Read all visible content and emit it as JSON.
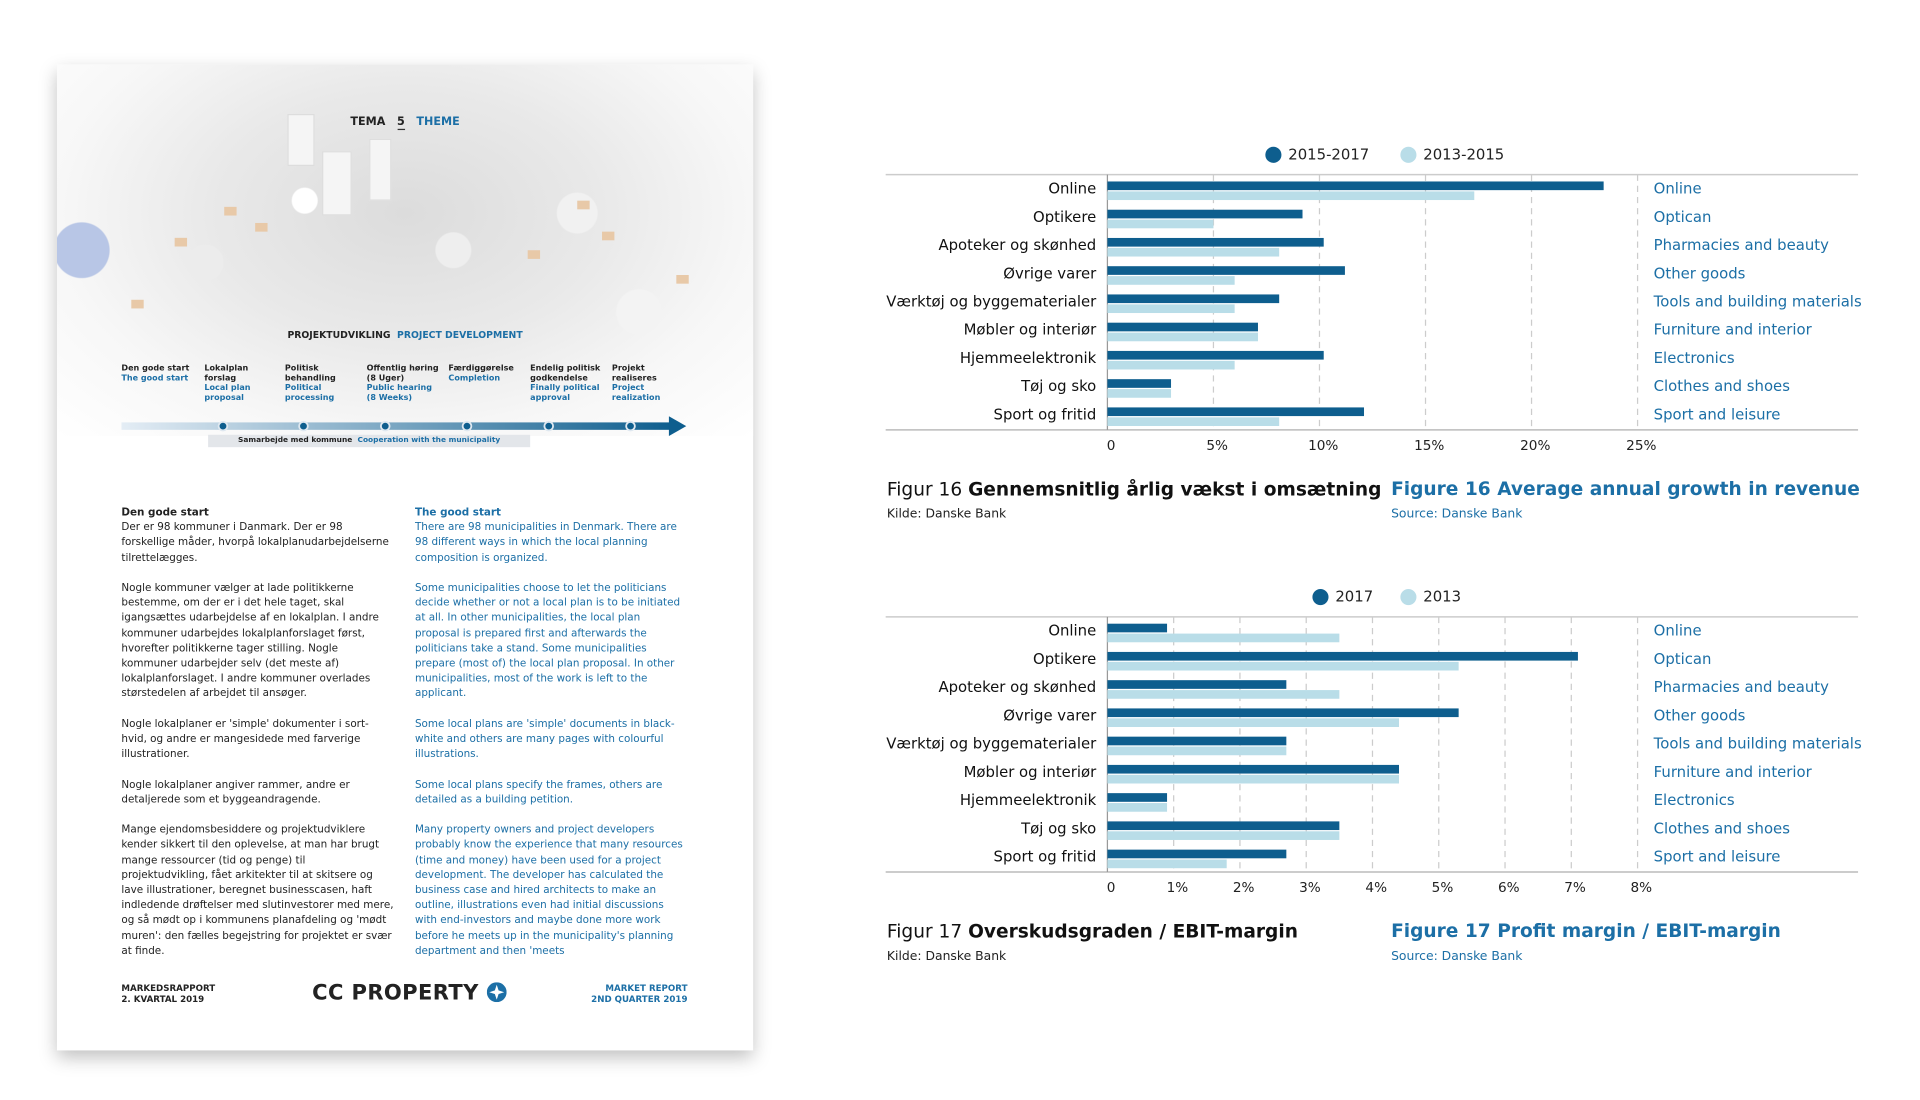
{
  "document": {
    "theme": {
      "label_da": "TEMA",
      "number": "5",
      "label_en": "THEME"
    },
    "process": {
      "title_da": "PROJEKTUDVIKLING",
      "title_en": "PROJECT DEVELOPMENT",
      "steps": [
        {
          "da": "Den gode start",
          "en": "The good start"
        },
        {
          "da": "Lokalplan forslag",
          "en": "Local plan proposal"
        },
        {
          "da": "Politisk behandling",
          "en": "Political processing"
        },
        {
          "da": "Offentlig høring (8 Uger)",
          "en": "Public hearing (8 Weeks)"
        },
        {
          "da": "Færdiggørelse",
          "en": "Completion"
        },
        {
          "da": "Endelig politisk godkendelse",
          "en": "Finally political approval"
        },
        {
          "da": "Projekt realiseres",
          "en": "Project realization"
        }
      ],
      "cooperation_da": "Samarbejde med kommune",
      "cooperation_en": "Cooperation with the municipality"
    },
    "text_da": {
      "heading": "Den gode start",
      "paragraphs": [
        "Der er 98 kommuner i Danmark. Der er 98 forskellige måder, hvorpå lokalplanudarbejdelserne tilrettelægges.",
        "Nogle kommuner vælger at lade politikkerne bestemme, om der er i det hele taget, skal igangsættes udarbejdelse af en lokalplan. I andre kommuner udarbejdes lokalplanforslaget først, hvorefter politikkerne tager stilling. Nogle kommuner udarbejder selv (det meste af) lokalplanforslaget. I andre kommuner overlades størstedelen af arbejdet til ansøger.",
        "Nogle lokalplaner er 'simple' dokumenter i sort-hvid, og andre er mangesidede med farverige illustrationer.",
        "Nogle lokalplaner angiver rammer, andre er detaljerede som et byggeandragende.",
        "Mange ejendomsbesiddere og projektudviklere kender sikkert til den oplevelse, at man har brugt mange ressourcer (tid og penge) til projektudvikling, fået arkitekter til at skitsere og lave illustrationer, beregnet businesscasen, haft indledende drøftelser med slutinvestorer med mere, og så mødt op i kommunens planafdeling og 'mødt muren': den fælles begejstring for projektet er svær at finde."
      ]
    },
    "text_en": {
      "heading": "The good start",
      "paragraphs": [
        "There are 98 municipalities in Denmark. There are 98 different ways in which the local planning composition is organized.",
        "Some municipalities choose to let the politicians decide whether or not a local plan is to be initiated at all. In other municipalities, the local plan proposal is prepared first and afterwards the politicians take a stand. Some municipalities prepare (most of) the local plan proposal. In other municipalities, most of the work is left to the applicant.",
        "Some local plans are 'simple' documents in black-white and others are many pages with colourful illustrations.",
        "Some local plans specify the frames, others are detailed as a building petition.",
        "Many property owners and project developers probably know the experience that many resources (time and money) have been used for a project development. The developer has calculated the business case and hired architects to make an outline, illustrations even had initial discussions with end-investors and maybe done more work before he meets up in the municipality's planning department and then 'meets"
      ]
    },
    "footer": {
      "left_1": "MARKEDSRAPPORT",
      "left_2": "2. KVARTAL 2019",
      "logo": "CC PROPERTY",
      "right_1": "MARKET REPORT",
      "right_2": "2ND QUARTER 2019"
    }
  },
  "chart_data": [
    {
      "type": "bar",
      "orientation": "horizontal",
      "legend": "top",
      "grid": true,
      "caption_label": "Figur 16",
      "caption_title": "Gennemsnitlig årlig vækst i omsætning",
      "source": "Kilde: Danske Bank",
      "caption_en": "Figure 16 Average annual growth in revenue",
      "source_en": "Source: Danske Bank",
      "categories": [
        "Online",
        "Optikere",
        "Apoteker og skønhed",
        "Øvrige varer",
        "Værktøj og byggematerialer",
        "Møbler og interiør",
        "Hjemmeelektronik",
        "Tøj og sko",
        "Sport og fritid"
      ],
      "categories_en": [
        "Online",
        "Optican",
        "Pharmacies and beauty",
        "Other goods",
        "Tools and building materials",
        "Furniture and interior",
        "Electronics",
        "Clothes and shoes",
        "Sport and leisure"
      ],
      "series": [
        {
          "name": "2015-2017",
          "color": "#0e5e8e",
          "values": [
            23.4,
            9.2,
            10.2,
            11.2,
            8.1,
            7.1,
            10.2,
            3.0,
            12.1
          ]
        },
        {
          "name": "2013-2015",
          "color": "#b9dde8",
          "values": [
            17.3,
            5.0,
            8.1,
            6.0,
            6.0,
            7.1,
            6.0,
            3.0,
            8.1
          ]
        }
      ],
      "xlim": [
        0,
        25
      ],
      "xticks": [
        0,
        {
          "value": 5,
          "label": "5%"
        },
        {
          "value": 10,
          "label": "10%"
        },
        {
          "value": 15,
          "label": "15%"
        },
        {
          "value": 20,
          "label": "20%"
        },
        {
          "value": 25,
          "label": "25%"
        }
      ]
    },
    {
      "type": "bar",
      "orientation": "horizontal",
      "legend": "top",
      "grid": true,
      "caption_label": "Figur 17",
      "caption_title": "Overskudsgraden / EBIT-margin",
      "source": "Kilde: Danske Bank",
      "caption_en": "Figure 17 Profit margin / EBIT-margin",
      "source_en": "Source: Danske Bank",
      "categories": [
        "Online",
        "Optikere",
        "Apoteker og skønhed",
        "Øvrige varer",
        "Værktøj og byggematerialer",
        "Møbler og interiør",
        "Hjemmeelektronik",
        "Tøj og sko",
        "Sport og fritid"
      ],
      "categories_en": [
        "Online",
        "Optican",
        "Pharmacies and beauty",
        "Other goods",
        "Tools and building materials",
        "Furniture and interior",
        "Electronics",
        "Clothes and shoes",
        "Sport and leisure"
      ],
      "series": [
        {
          "name": "2017",
          "color": "#0e5e8e",
          "values": [
            0.9,
            7.1,
            2.7,
            5.3,
            2.7,
            4.4,
            0.9,
            3.5,
            2.7
          ]
        },
        {
          "name": "2013",
          "color": "#b9dde8",
          "values": [
            3.5,
            5.3,
            3.5,
            4.4,
            2.7,
            4.4,
            0.9,
            3.5,
            1.8
          ]
        }
      ],
      "xlim": [
        0,
        8
      ],
      "xticks": [
        0,
        {
          "value": 1,
          "label": "1%"
        },
        {
          "value": 2,
          "label": "2%"
        },
        {
          "value": 3,
          "label": "3%"
        },
        {
          "value": 4,
          "label": "4%"
        },
        {
          "value": 5,
          "label": "5%"
        },
        {
          "value": 6,
          "label": "6%"
        },
        {
          "value": 7,
          "label": "7%"
        },
        {
          "value": 8,
          "label": "8%"
        }
      ]
    }
  ]
}
